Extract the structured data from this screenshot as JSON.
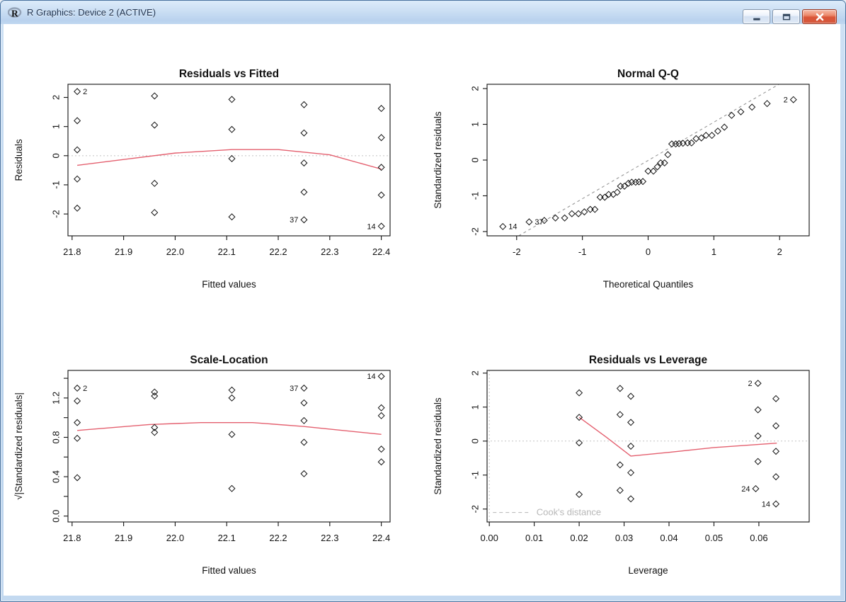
{
  "window": {
    "title": "R Graphics: Device 2 (ACTIVE)",
    "logo_letter": "R",
    "controls": {
      "minimize": "minimize",
      "restore": "restore",
      "close": "close"
    }
  },
  "colors": {
    "smooth_line": "#e4606f",
    "dotted_reference": "#c3c3c3",
    "dashed_reference": "#979797",
    "legend_gray": "#bdbdbd",
    "axis_black": "#121212",
    "close_button_red": "#d4593e",
    "titlebar_blue": "#b9d2ee"
  },
  "chart_data": [
    {
      "type": "scatter",
      "title": "Residuals vs Fitted",
      "xlabel": "Fitted values",
      "ylabel": "Residuals",
      "xlim": [
        21.792,
        22.417
      ],
      "ylim": [
        -2.75,
        2.45
      ],
      "xticks": [
        21.8,
        21.9,
        22.0,
        22.1,
        22.2,
        22.3,
        22.4
      ],
      "xtick_labels": [
        "21.8",
        "21.9",
        "22.0",
        "22.1",
        "22.2",
        "22.3",
        "22.4"
      ],
      "yticks": [
        -2,
        -1,
        0,
        1,
        2
      ],
      "ytick_labels": [
        "-2",
        "-1",
        "0",
        "1",
        "2"
      ],
      "grid": false,
      "ref_lines": [
        {
          "orient": "h",
          "at": 0
        }
      ],
      "points": [
        [
          21.81,
          2.2
        ],
        [
          21.81,
          1.2
        ],
        [
          21.81,
          0.2
        ],
        [
          21.81,
          -0.8
        ],
        [
          21.81,
          -1.8
        ],
        [
          21.96,
          2.05
        ],
        [
          21.96,
          1.05
        ],
        [
          21.96,
          -0.95
        ],
        [
          21.96,
          -1.95
        ],
        [
          22.11,
          1.93
        ],
        [
          22.11,
          0.9
        ],
        [
          22.11,
          -0.1
        ],
        [
          22.11,
          -2.1
        ],
        [
          22.25,
          1.75
        ],
        [
          22.25,
          0.78
        ],
        [
          22.25,
          -0.25
        ],
        [
          22.25,
          -1.25
        ],
        [
          22.25,
          -2.2
        ],
        [
          22.4,
          1.62
        ],
        [
          22.4,
          0.62
        ],
        [
          22.4,
          -0.4
        ],
        [
          22.4,
          -1.35
        ],
        [
          22.4,
          -2.42
        ]
      ],
      "point_labels": [
        {
          "text": "2",
          "x": 21.81,
          "y": 2.2,
          "side": "right"
        },
        {
          "text": "37",
          "x": 22.25,
          "y": -2.2,
          "side": "left"
        },
        {
          "text": "14",
          "x": 22.4,
          "y": -2.42,
          "side": "left"
        }
      ],
      "smooth_line": [
        [
          21.81,
          -0.33
        ],
        [
          21.9,
          -0.13
        ],
        [
          22.0,
          0.09
        ],
        [
          22.11,
          0.21
        ],
        [
          22.2,
          0.21
        ],
        [
          22.3,
          0.03
        ],
        [
          22.4,
          -0.46
        ]
      ]
    },
    {
      "type": "scatter",
      "title": "Normal Q-Q",
      "xlabel": "Theoretical Quantiles",
      "ylabel": "Standardized residuals",
      "xlim": [
        -2.45,
        2.45
      ],
      "ylim": [
        -2.12,
        2.12
      ],
      "xticks": [
        -2,
        -1,
        0,
        1,
        2
      ],
      "xtick_labels": [
        "-2",
        "-1",
        "0",
        "1",
        "2"
      ],
      "yticks": [
        -2,
        -1,
        0,
        1,
        2
      ],
      "ytick_labels": [
        "-2",
        "-1",
        "0",
        "1",
        "2"
      ],
      "grid": false,
      "dashed_line": [
        [
          -1.97,
          -2.12
        ],
        [
          1.99,
          2.12
        ]
      ],
      "points": [
        [
          -2.21,
          -1.86
        ],
        [
          -1.81,
          -1.73
        ],
        [
          -1.58,
          -1.69
        ],
        [
          -1.41,
          -1.62
        ],
        [
          -1.27,
          -1.62
        ],
        [
          -1.16,
          -1.5
        ],
        [
          -1.06,
          -1.5
        ],
        [
          -0.97,
          -1.45
        ],
        [
          -0.88,
          -1.38
        ],
        [
          -0.81,
          -1.38
        ],
        [
          -0.73,
          -1.04
        ],
        [
          -0.66,
          -1.04
        ],
        [
          -0.6,
          -0.96
        ],
        [
          -0.53,
          -0.96
        ],
        [
          -0.47,
          -0.9
        ],
        [
          -0.42,
          -0.73
        ],
        [
          -0.36,
          -0.73
        ],
        [
          -0.3,
          -0.65
        ],
        [
          -0.25,
          -0.62
        ],
        [
          -0.19,
          -0.62
        ],
        [
          -0.14,
          -0.61
        ],
        [
          -0.08,
          -0.6
        ],
        [
          0,
          -0.31
        ],
        [
          0.08,
          -0.31
        ],
        [
          0.14,
          -0.19
        ],
        [
          0.19,
          -0.08
        ],
        [
          0.25,
          -0.08
        ],
        [
          0.3,
          0.15
        ],
        [
          0.36,
          0.45
        ],
        [
          0.42,
          0.45
        ],
        [
          0.47,
          0.46
        ],
        [
          0.53,
          0.47
        ],
        [
          0.6,
          0.48
        ],
        [
          0.66,
          0.48
        ],
        [
          0.73,
          0.6
        ],
        [
          0.81,
          0.62
        ],
        [
          0.88,
          0.69
        ],
        [
          0.97,
          0.69
        ],
        [
          1.06,
          0.81
        ],
        [
          1.16,
          0.92
        ],
        [
          1.27,
          1.25
        ],
        [
          1.41,
          1.35
        ],
        [
          1.58,
          1.48
        ],
        [
          1.81,
          1.58
        ],
        [
          2.21,
          1.69
        ]
      ],
      "point_labels": [
        {
          "text": "14",
          "x": -2.21,
          "y": -1.86,
          "side": "right"
        },
        {
          "text": "37",
          "x": -1.81,
          "y": -1.73,
          "side": "right"
        },
        {
          "text": "2",
          "x": 2.21,
          "y": 1.69,
          "side": "left"
        }
      ]
    },
    {
      "type": "scatter",
      "title": "Scale-Location",
      "xlabel": "Fitted values",
      "ylabel": "√|Standardized residuals|",
      "xlim": [
        21.792,
        22.417
      ],
      "ylim": [
        -0.06,
        1.48
      ],
      "xticks": [
        21.8,
        21.9,
        22.0,
        22.1,
        22.2,
        22.3,
        22.4
      ],
      "xtick_labels": [
        "21.8",
        "21.9",
        "22.0",
        "22.1",
        "22.2",
        "22.3",
        "22.4"
      ],
      "yticks": [
        0,
        0.2,
        0.4,
        0.6,
        0.8,
        1.0,
        1.2,
        1.4
      ],
      "ytick_labels": [
        "0.0",
        "",
        "0.4",
        "",
        "0.8",
        "",
        "1.2",
        ""
      ],
      "grid": false,
      "points": [
        [
          21.81,
          1.3
        ],
        [
          21.81,
          1.17
        ],
        [
          21.81,
          0.95
        ],
        [
          21.81,
          0.79
        ],
        [
          21.81,
          0.39
        ],
        [
          21.96,
          1.26
        ],
        [
          21.96,
          1.22
        ],
        [
          21.96,
          0.9
        ],
        [
          21.96,
          0.85
        ],
        [
          22.11,
          1.28
        ],
        [
          22.11,
          1.2
        ],
        [
          22.11,
          0.83
        ],
        [
          22.11,
          0.28
        ],
        [
          22.25,
          1.3
        ],
        [
          22.25,
          1.15
        ],
        [
          22.25,
          0.97
        ],
        [
          22.25,
          0.75
        ],
        [
          22.25,
          0.43
        ],
        [
          22.4,
          1.42
        ],
        [
          22.4,
          1.1
        ],
        [
          22.4,
          1.02
        ],
        [
          22.4,
          0.68
        ],
        [
          22.4,
          0.55
        ]
      ],
      "point_labels": [
        {
          "text": "2",
          "x": 21.81,
          "y": 1.3,
          "side": "right"
        },
        {
          "text": "37",
          "x": 22.25,
          "y": 1.3,
          "side": "left"
        },
        {
          "text": "14",
          "x": 22.4,
          "y": 1.42,
          "side": "left"
        }
      ],
      "smooth_line": [
        [
          21.81,
          0.87
        ],
        [
          21.95,
          0.93
        ],
        [
          22.05,
          0.95
        ],
        [
          22.15,
          0.95
        ],
        [
          22.25,
          0.91
        ],
        [
          22.4,
          0.83
        ]
      ]
    },
    {
      "type": "scatter",
      "title": "Residuals vs Leverage",
      "xlabel": "Leverage",
      "ylabel": "Standardized residuals",
      "xlim": [
        -0.0005,
        0.0712
      ],
      "ylim": [
        -2.38,
        2.08
      ],
      "xticks": [
        0,
        0.01,
        0.02,
        0.03,
        0.04,
        0.05,
        0.06
      ],
      "xtick_labels": [
        "0.00",
        "0.01",
        "0.02",
        "0.03",
        "0.04",
        "0.05",
        "0.06"
      ],
      "yticks": [
        -2,
        -1,
        0,
        1,
        2
      ],
      "ytick_labels": [
        "-2",
        "-1",
        "0",
        "1",
        "2"
      ],
      "grid": false,
      "ref_lines": [
        {
          "orient": "h",
          "at": 0
        },
        {
          "orient": "v",
          "at": 0
        }
      ],
      "points": [
        [
          0.02,
          1.42
        ],
        [
          0.02,
          0.7
        ],
        [
          0.02,
          -0.05
        ],
        [
          0.02,
          -1.57
        ],
        [
          0.0291,
          1.55
        ],
        [
          0.0291,
          0.78
        ],
        [
          0.0291,
          -0.7
        ],
        [
          0.0291,
          -1.45
        ],
        [
          0.0315,
          1.32
        ],
        [
          0.0315,
          0.55
        ],
        [
          0.0315,
          -0.15
        ],
        [
          0.0315,
          -0.93
        ],
        [
          0.0315,
          -1.7
        ],
        [
          0.0598,
          1.7
        ],
        [
          0.0598,
          0.92
        ],
        [
          0.0598,
          0.15
        ],
        [
          0.0598,
          -0.6
        ],
        [
          0.0638,
          1.25
        ],
        [
          0.0638,
          0.45
        ],
        [
          0.0638,
          -0.3
        ],
        [
          0.0638,
          -1.05
        ],
        [
          0.0638,
          -1.85
        ],
        [
          0.0593,
          -1.4
        ]
      ],
      "point_labels": [
        {
          "text": "2",
          "x": 0.0598,
          "y": 1.7,
          "side": "left"
        },
        {
          "text": "24",
          "x": 0.0593,
          "y": -1.4,
          "side": "left"
        },
        {
          "text": "14",
          "x": 0.0638,
          "y": -1.85,
          "side": "left"
        }
      ],
      "smooth_line": [
        [
          0.02,
          0.7
        ],
        [
          0.026,
          0.12
        ],
        [
          0.0315,
          -0.44
        ],
        [
          0.04,
          -0.33
        ],
        [
          0.05,
          -0.19
        ],
        [
          0.064,
          -0.06
        ]
      ],
      "legend": {
        "label": "Cook's distance",
        "y": -2.1,
        "line_from": 0.0008,
        "line_to": 0.009,
        "text_x": 0.0105
      }
    }
  ]
}
